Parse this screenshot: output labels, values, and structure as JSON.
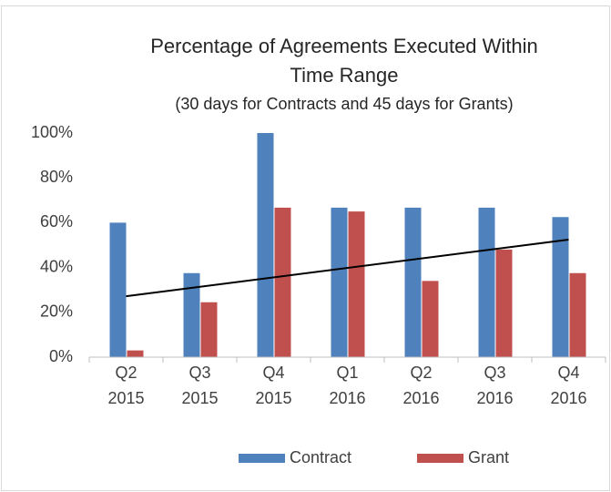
{
  "chart_data": {
    "type": "bar",
    "title": [
      "Percentage of Agreements Executed Within",
      "Time Range"
    ],
    "subtitle": "(30 days for Contracts and 45 days for Grants)",
    "categories": [
      "Q2 2015",
      "Q3 2015",
      "Q4 2015",
      "Q1 2016",
      "Q2 2016",
      "Q3 2016",
      "Q4 2016"
    ],
    "series": [
      {
        "name": "Contract",
        "color": "#4f81bd",
        "values": [
          60,
          37.5,
          100,
          66.7,
          66.7,
          66.7,
          62.5
        ]
      },
      {
        "name": "Grant",
        "color": "#c0504d",
        "values": [
          3,
          24.5,
          66.7,
          65,
          34,
          48,
          37.5
        ]
      }
    ],
    "trendline": {
      "series": "Grant",
      "color": "#000000"
    },
    "ylim": [
      0,
      100
    ],
    "yticks": [
      {
        "value": 0,
        "label": "0%"
      },
      {
        "value": 20,
        "label": "20%"
      },
      {
        "value": 40,
        "label": "40%"
      },
      {
        "value": 60,
        "label": "60%"
      },
      {
        "value": 80,
        "label": "80%"
      },
      {
        "value": 100,
        "label": "100%"
      }
    ],
    "grid": false,
    "legend": "bottom"
  }
}
